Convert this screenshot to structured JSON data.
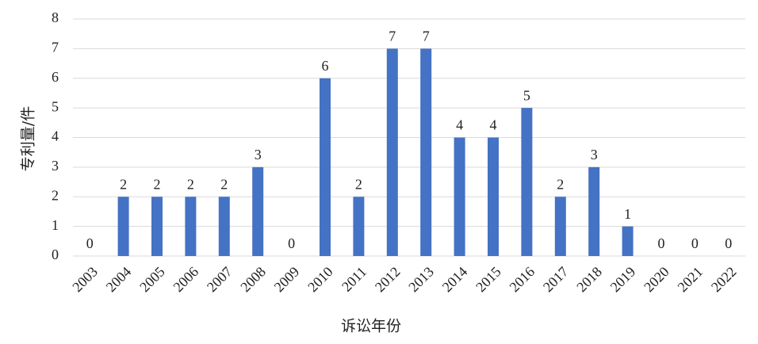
{
  "chart_data": {
    "type": "bar",
    "x_label": "诉讼年份",
    "y_label": "专利量/件",
    "categories": [
      "2003",
      "2004",
      "2005",
      "2006",
      "2007",
      "2008",
      "2009",
      "2010",
      "2011",
      "2012",
      "2013",
      "2014",
      "2015",
      "2016",
      "2017",
      "2018",
      "2019",
      "2020",
      "2021",
      "2022"
    ],
    "values": [
      0,
      2,
      2,
      2,
      2,
      3,
      0,
      6,
      2,
      7,
      7,
      4,
      4,
      5,
      2,
      3,
      1,
      0,
      0,
      0
    ],
    "color": "#4472c4",
    "ylim": [
      0,
      8
    ],
    "yticks": [
      0,
      1,
      2,
      3,
      4,
      5,
      6,
      7,
      8
    ],
    "grid": true
  }
}
